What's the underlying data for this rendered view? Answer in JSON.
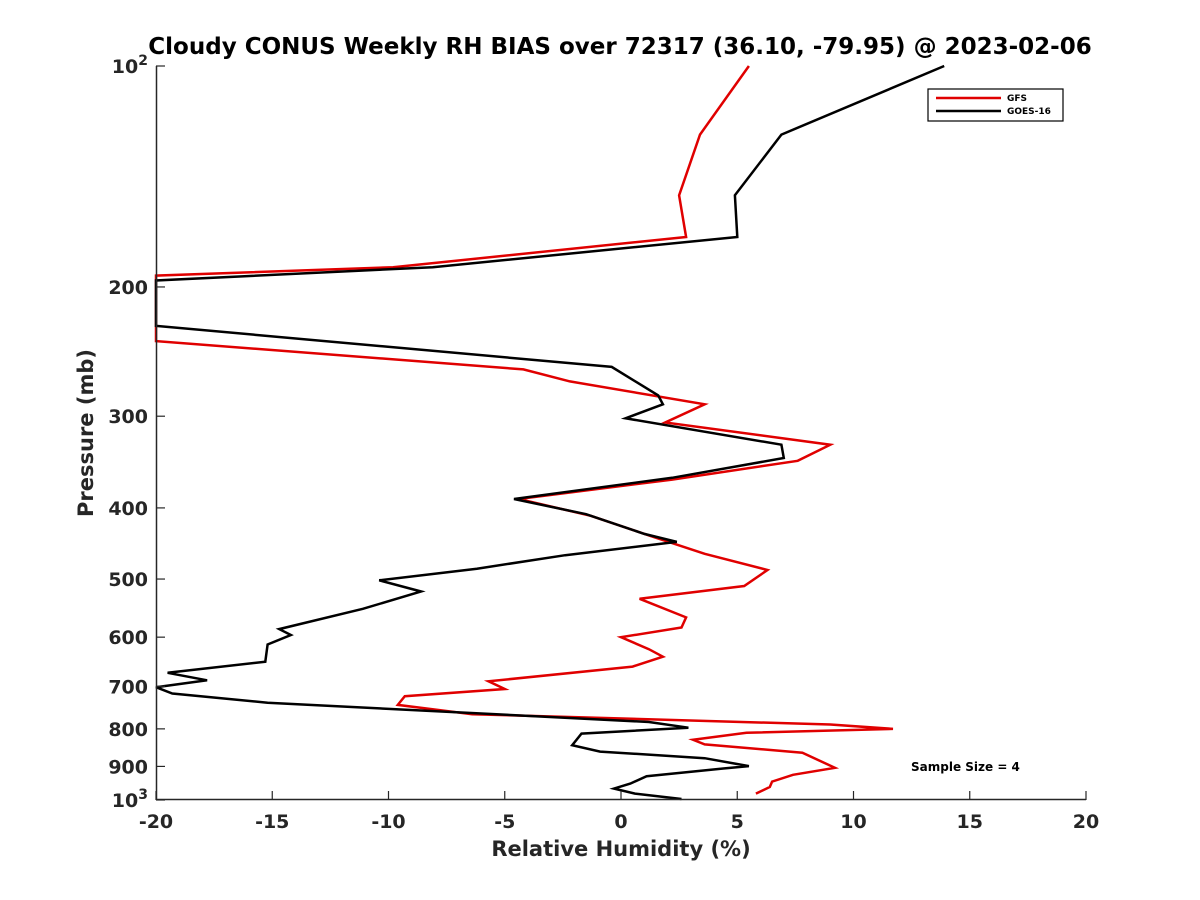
{
  "chart_data": {
    "type": "line",
    "title": "Cloudy CONUS Weekly RH BIAS over 72317 (36.10, -79.95) @ 2023-02-06",
    "xlabel": "Relative Humidity (%)",
    "ylabel": "Pressure (mb)",
    "xlim": [
      -20,
      20
    ],
    "ylim": [
      100,
      1000
    ],
    "y_scale": "log",
    "y_reversed": true,
    "x_ticks": [
      "-20",
      "-15",
      "-10",
      "-5",
      "0",
      "5",
      "10",
      "15",
      "20"
    ],
    "y_ticks": [
      {
        "value": 100,
        "base": "10",
        "exp": "2"
      },
      {
        "value": 200,
        "label": "200"
      },
      {
        "value": 300,
        "label": "300"
      },
      {
        "value": 400,
        "label": "400"
      },
      {
        "value": 500,
        "label": "500"
      },
      {
        "value": 600,
        "label": "600"
      },
      {
        "value": 700,
        "label": "700"
      },
      {
        "value": 800,
        "label": "800"
      },
      {
        "value": 900,
        "label": "900"
      },
      {
        "value": 1000,
        "base": "10",
        "exp": "3"
      }
    ],
    "grid": false,
    "legend_position": "top-right",
    "annotation": "Sample Size = 4",
    "series": [
      {
        "name": "GFS",
        "color": "#e00000",
        "points": [
          [
            5.5,
            100
          ],
          [
            3.4,
            124
          ],
          [
            2.5,
            150
          ],
          [
            2.8,
            171
          ],
          [
            -9.8,
            188
          ],
          [
            -20.0,
            193
          ],
          [
            -20.0,
            237
          ],
          [
            -4.2,
            259
          ],
          [
            -2.2,
            269
          ],
          [
            3.6,
            289
          ],
          [
            1.9,
            306
          ],
          [
            9.0,
            328
          ],
          [
            7.6,
            345
          ],
          [
            2.2,
            366
          ],
          [
            -4.4,
            389
          ],
          [
            -1.3,
            410
          ],
          [
            1.2,
            436
          ],
          [
            3.6,
            462
          ],
          [
            6.3,
            486
          ],
          [
            5.3,
            511
          ],
          [
            0.8,
            532
          ],
          [
            2.8,
            564
          ],
          [
            2.6,
            582
          ],
          [
            0.0,
            600
          ],
          [
            1.2,
            623
          ],
          [
            1.8,
            638
          ],
          [
            0.5,
            658
          ],
          [
            -5.7,
            689
          ],
          [
            -5.0,
            706
          ],
          [
            -9.3,
            722
          ],
          [
            -9.6,
            742
          ],
          [
            -6.4,
            764
          ],
          [
            9.0,
            789
          ],
          [
            11.7,
            800
          ],
          [
            5.4,
            810
          ],
          [
            3.1,
            828
          ],
          [
            3.6,
            840
          ],
          [
            7.8,
            862
          ],
          [
            9.2,
            904
          ],
          [
            7.4,
            924
          ],
          [
            6.5,
            944
          ],
          [
            6.4,
            960
          ],
          [
            5.8,
            980
          ]
        ]
      },
      {
        "name": "GOES-16",
        "color": "#000000",
        "points": [
          [
            13.9,
            100
          ],
          [
            6.9,
            124
          ],
          [
            4.9,
            150
          ],
          [
            5.0,
            171
          ],
          [
            -8.1,
            188
          ],
          [
            -20.0,
            196
          ],
          [
            -20.0,
            226
          ],
          [
            -0.4,
            257
          ],
          [
            1.6,
            281
          ],
          [
            1.8,
            289
          ],
          [
            0.2,
            302
          ],
          [
            6.9,
            328
          ],
          [
            7.0,
            342
          ],
          [
            2.2,
            364
          ],
          [
            -4.6,
            389
          ],
          [
            -1.5,
            408
          ],
          [
            1.0,
            434
          ],
          [
            2.4,
            445
          ],
          [
            -2.4,
            464
          ],
          [
            -6.2,
            484
          ],
          [
            -10.4,
            502
          ],
          [
            -8.6,
            520
          ],
          [
            -11.1,
            549
          ],
          [
            -14.7,
            585
          ],
          [
            -14.2,
            596
          ],
          [
            -15.2,
            614
          ],
          [
            -15.3,
            648
          ],
          [
            -19.5,
            671
          ],
          [
            -17.8,
            687
          ],
          [
            -20.0,
            702
          ],
          [
            -19.3,
            716
          ],
          [
            -15.2,
            737
          ],
          [
            1.2,
            783
          ],
          [
            2.9,
            797
          ],
          [
            -1.7,
            812
          ],
          [
            -2.1,
            842
          ],
          [
            -0.9,
            859
          ],
          [
            3.6,
            877
          ],
          [
            5.5,
            899
          ],
          [
            4.4,
            906
          ],
          [
            1.1,
            928
          ],
          [
            0.4,
            950
          ],
          [
            -0.3,
            965
          ],
          [
            0.6,
            980
          ],
          [
            2.6,
            997
          ]
        ]
      }
    ]
  }
}
